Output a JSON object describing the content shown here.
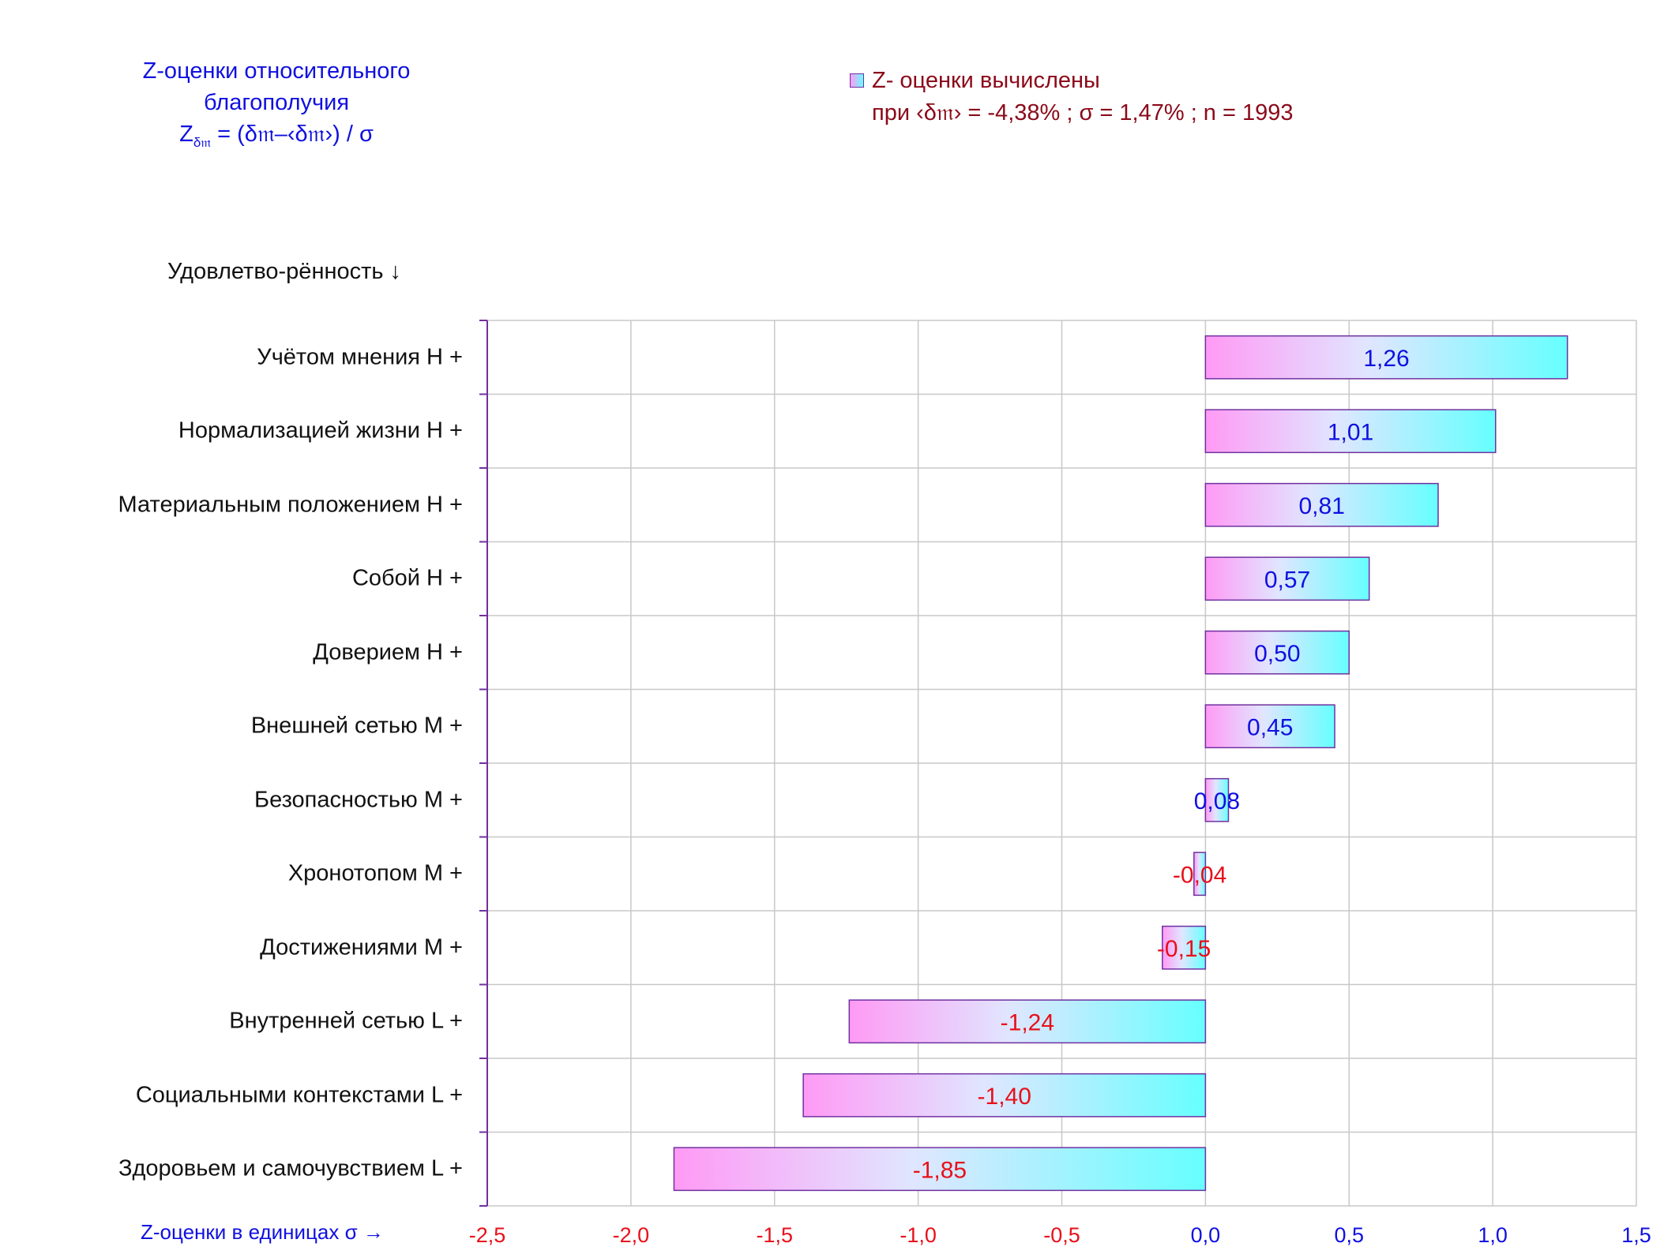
{
  "title": {
    "line1": "Z-оценки  относительного",
    "line2": "благополучия",
    "formula_z": "Z",
    "formula_sub": "δ𝔪",
    "formula_rest": " = (δ𝔪–‹δ𝔪›)  / σ"
  },
  "legend": {
    "line1": "Z- оценки вычислены",
    "line2": "при ‹δ𝔪›  = -4,38% ; σ = 1,47% ; n = 1993"
  },
  "colors": {
    "bar_left": "#ff9af5",
    "bar_right": "#66ffff",
    "bar_border": "#7030a0",
    "positive_label": "#1010e0",
    "negative_label": "#e8101a",
    "grid": "#c8c8c8",
    "axis": "#7030a0"
  },
  "chart_data": {
    "type": "bar",
    "orientation": "horizontal",
    "ylabel": "Удовлетво-рённость ↓",
    "xlabel": "Z-оценки в единицах σ →",
    "xlim": [
      -2.5,
      1.5
    ],
    "xticks": [
      "-2,5",
      "-2,0",
      "-1,5",
      "-1,0",
      "-0,5",
      "0,0",
      "0,5",
      "1,0",
      "1,5"
    ],
    "xtick_values": [
      -2.5,
      -2.0,
      -1.5,
      -1.0,
      -0.5,
      0.0,
      0.5,
      1.0,
      1.5
    ],
    "grid": true,
    "categories": [
      "Учётом мнения  Н +",
      "Нормализацией жизни  Н +",
      "Материальным положением  Н +",
      "Собой  Н +",
      "Доверием  Н +",
      "Внешней сетью  М +",
      "Безопасностью  М +",
      "Хронотопом  М +",
      "Достижениями  М +",
      "Внутренней сетью  L +",
      "Социальными контекстами  L +",
      "Здоровьем и самочувствием  L +"
    ],
    "values": [
      1.26,
      1.01,
      0.81,
      0.57,
      0.5,
      0.45,
      0.08,
      -0.04,
      -0.15,
      -1.24,
      -1.4,
      -1.85
    ],
    "value_labels": [
      "1,26",
      "1,01",
      "0,81",
      "0,57",
      "0,50",
      "0,45",
      "0,08",
      "-0,04",
      "-0,15",
      "-1,24",
      "-1,40",
      "-1,85"
    ]
  }
}
